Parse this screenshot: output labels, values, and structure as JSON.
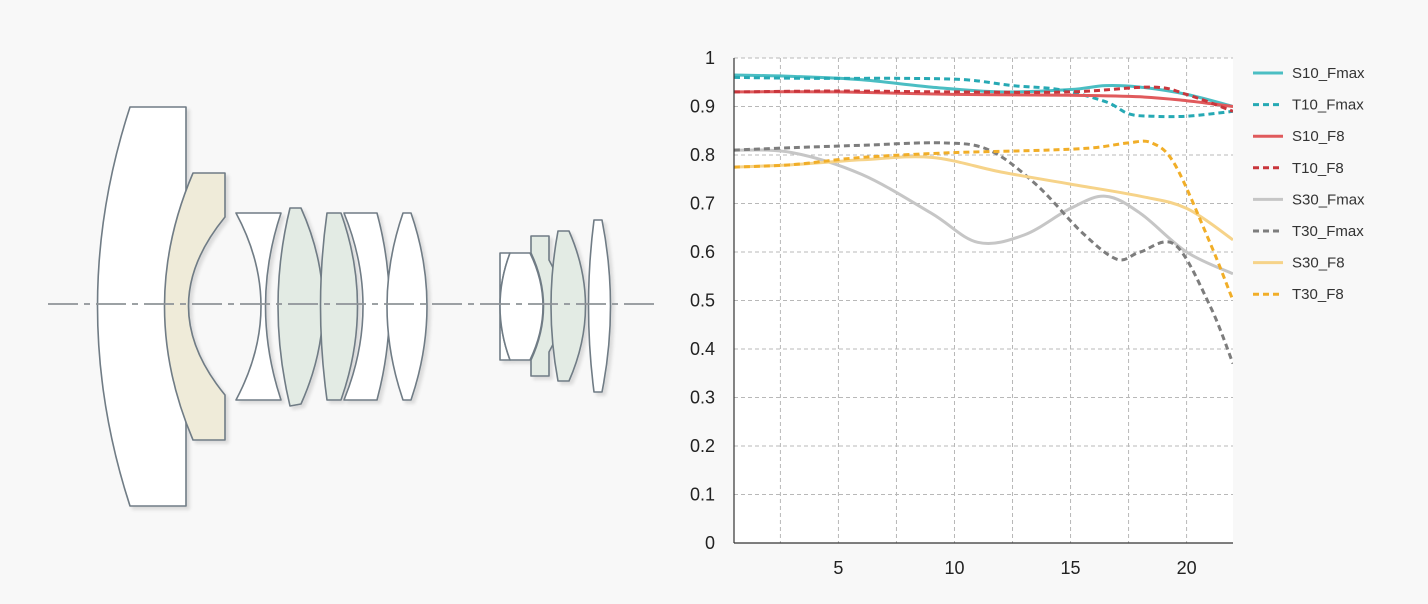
{
  "lens_diagram": {
    "colors": {
      "outline": "#6f7b85",
      "axis": "#8f9498",
      "element_fill": "#ffffff",
      "aspheric_fill": "#e3ebe4",
      "ed_fill": "#efebd9"
    }
  },
  "chart_data": {
    "type": "line",
    "title": "",
    "xlabel": "",
    "ylabel": "",
    "xlim": [
      0.5,
      22
    ],
    "ylim": [
      0,
      1
    ],
    "x_ticks": [
      5,
      10,
      15,
      20
    ],
    "x_tick_labels": [
      "5",
      "10",
      "15",
      "20"
    ],
    "y_ticks": [
      0,
      0.1,
      0.2,
      0.3,
      0.4,
      0.5,
      0.6,
      0.7,
      0.8,
      0.9,
      1
    ],
    "y_tick_labels": [
      "0",
      "0.1",
      "0.2",
      "0.3",
      "0.4",
      "0.5",
      "0.6",
      "0.7",
      "0.8",
      "0.9",
      "1"
    ],
    "grid": true,
    "legend_position": "right",
    "series": [
      {
        "name": "S10_Fmax",
        "color": "#4bbec3",
        "dash": false,
        "x": [
          0.5,
          3,
          6,
          9,
          12,
          15,
          16.5,
          18,
          20,
          22
        ],
        "y": [
          0.965,
          0.962,
          0.955,
          0.94,
          0.93,
          0.935,
          0.943,
          0.94,
          0.925,
          0.9
        ]
      },
      {
        "name": "T10_Fmax",
        "color": "#26a9b4",
        "dash": true,
        "x": [
          0.5,
          4,
          8,
          10.5,
          12.5,
          14.5,
          16.5,
          17.5,
          18.5,
          20,
          22
        ],
        "y": [
          0.96,
          0.958,
          0.958,
          0.955,
          0.943,
          0.935,
          0.91,
          0.885,
          0.88,
          0.88,
          0.89
        ]
      },
      {
        "name": "S10_F8",
        "color": "#e05a5c",
        "dash": false,
        "x": [
          0.5,
          5,
          10,
          15,
          18,
          20,
          22
        ],
        "y": [
          0.93,
          0.93,
          0.925,
          0.923,
          0.92,
          0.912,
          0.9
        ]
      },
      {
        "name": "T10_F8",
        "color": "#c9363c",
        "dash": true,
        "x": [
          0.5,
          5,
          10,
          15,
          18.5,
          20,
          22
        ],
        "y": [
          0.93,
          0.932,
          0.93,
          0.93,
          0.94,
          0.925,
          0.89
        ]
      },
      {
        "name": "S30_Fmax",
        "color": "#c6c6c6",
        "dash": false,
        "x": [
          0.5,
          3,
          6,
          9,
          11,
          13,
          15,
          16.5,
          18,
          20,
          22
        ],
        "y": [
          0.81,
          0.805,
          0.76,
          0.68,
          0.62,
          0.635,
          0.69,
          0.715,
          0.68,
          0.6,
          0.555
        ]
      },
      {
        "name": "T30_Fmax",
        "color": "#7d7d7d",
        "dash": true,
        "x": [
          0.5,
          3,
          6,
          9.5,
          11.5,
          13.5,
          15.5,
          17,
          18,
          19.5,
          21,
          22
        ],
        "y": [
          0.81,
          0.815,
          0.82,
          0.825,
          0.81,
          0.74,
          0.64,
          0.585,
          0.6,
          0.615,
          0.49,
          0.37
        ]
      },
      {
        "name": "S30_F8",
        "color": "#f6d389",
        "dash": false,
        "x": [
          0.5,
          3,
          6,
          9,
          12,
          15,
          18,
          20,
          22
        ],
        "y": [
          0.775,
          0.78,
          0.79,
          0.795,
          0.765,
          0.74,
          0.715,
          0.69,
          0.625
        ]
      },
      {
        "name": "T30_F8",
        "color": "#f1ae28",
        "dash": true,
        "x": [
          0.5,
          3,
          6,
          10,
          14,
          16,
          17.5,
          18.5,
          19.5,
          21,
          22
        ],
        "y": [
          0.775,
          0.78,
          0.795,
          0.805,
          0.81,
          0.815,
          0.825,
          0.825,
          0.78,
          0.62,
          0.5
        ]
      }
    ]
  }
}
